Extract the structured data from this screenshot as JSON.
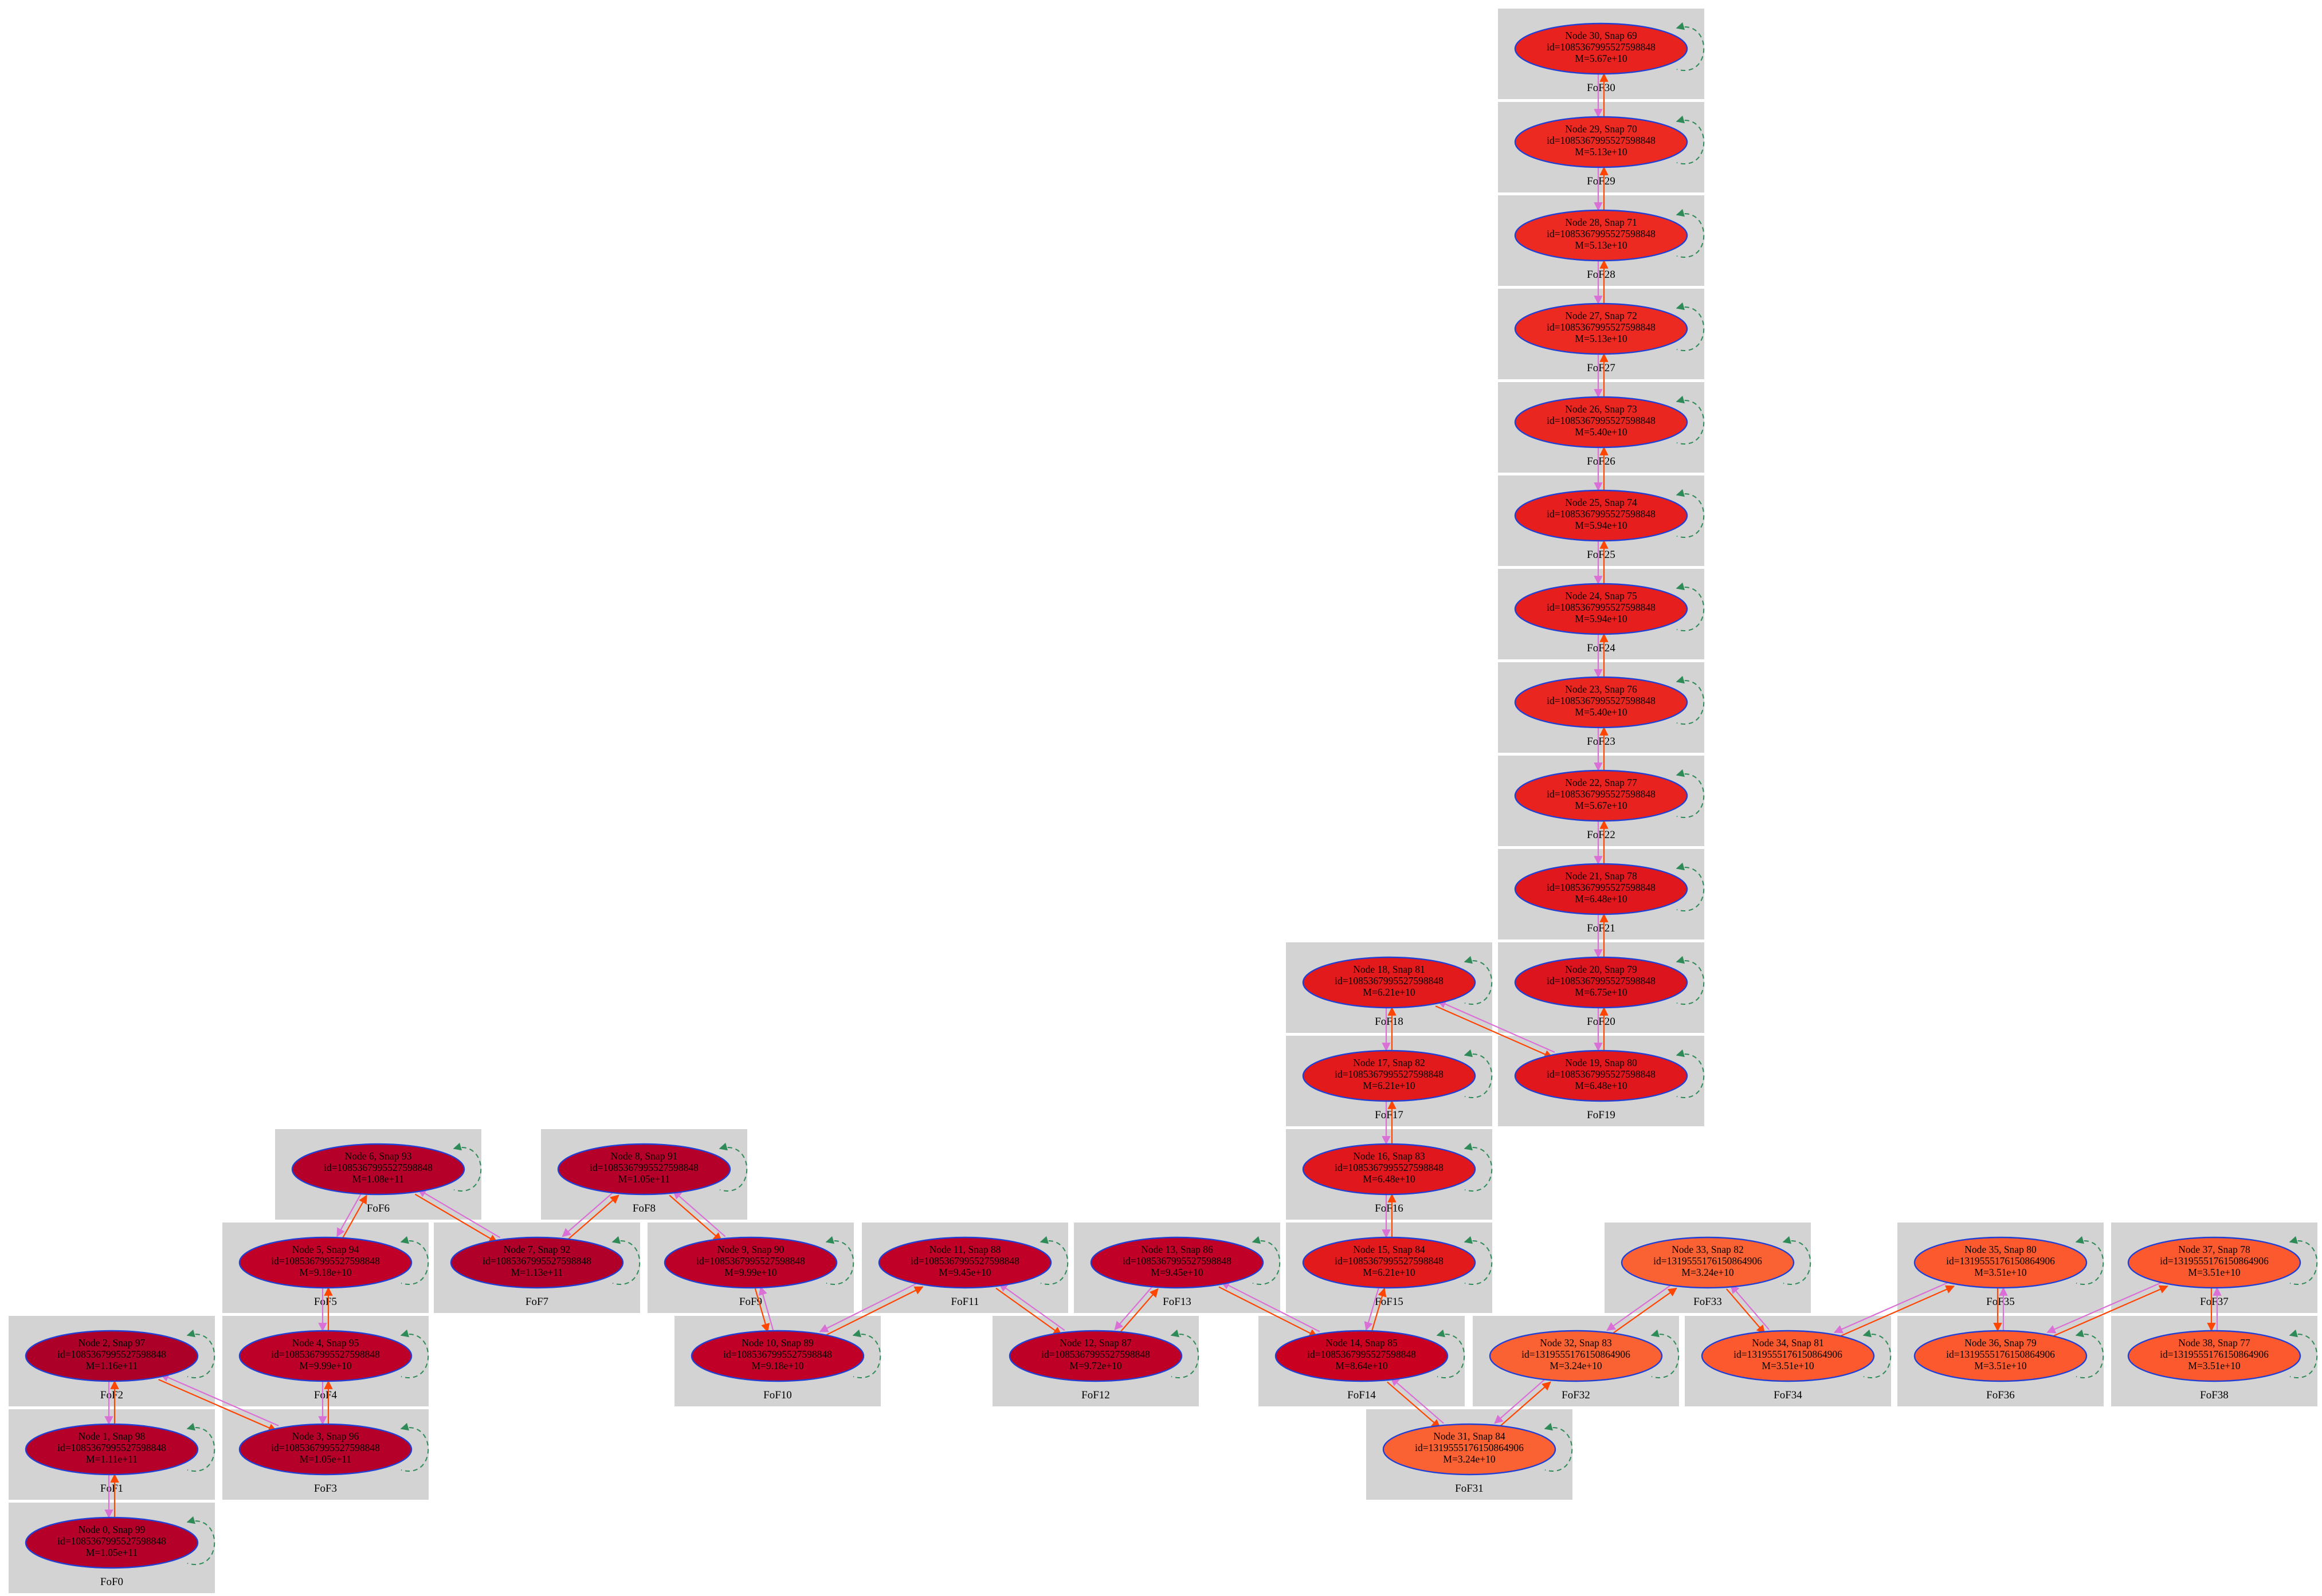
{
  "colors": {
    "cluster_bg": "#d3d3d3",
    "node_stroke": "#1f3fd6",
    "edge_progenitor": "#ff4500",
    "edge_descendant": "#da70d6",
    "edge_self_loop": "#2e8b57"
  },
  "clusters": [
    {
      "label": "FoF0"
    },
    {
      "label": "FoF1"
    },
    {
      "label": "FoF2"
    },
    {
      "label": "FoF3"
    },
    {
      "label": "FoF4"
    },
    {
      "label": "FoF5"
    },
    {
      "label": "FoF6"
    },
    {
      "label": "FoF7"
    },
    {
      "label": "FoF8"
    },
    {
      "label": "FoF9"
    },
    {
      "label": "FoF10"
    },
    {
      "label": "FoF11"
    },
    {
      "label": "FoF12"
    },
    {
      "label": "FoF13"
    },
    {
      "label": "FoF14"
    },
    {
      "label": "FoF15"
    },
    {
      "label": "FoF16"
    },
    {
      "label": "FoF17"
    },
    {
      "label": "FoF18"
    },
    {
      "label": "FoF19"
    },
    {
      "label": "FoF20"
    },
    {
      "label": "FoF21"
    },
    {
      "label": "FoF22"
    },
    {
      "label": "FoF23"
    },
    {
      "label": "FoF24"
    },
    {
      "label": "FoF25"
    },
    {
      "label": "FoF26"
    },
    {
      "label": "FoF27"
    },
    {
      "label": "FoF28"
    },
    {
      "label": "FoF29"
    },
    {
      "label": "FoF30"
    },
    {
      "label": "FoF31"
    },
    {
      "label": "FoF32"
    },
    {
      "label": "FoF33"
    },
    {
      "label": "FoF34"
    },
    {
      "label": "FoF35"
    },
    {
      "label": "FoF36"
    },
    {
      "label": "FoF37"
    },
    {
      "label": "FoF38"
    }
  ],
  "nodes": [
    {
      "title": "Node 0, Snap 99",
      "id_text": "id=1085367995527598848",
      "mass": "M=1.05e+11",
      "color": "#b5002a"
    },
    {
      "title": "Node 1, Snap 98",
      "id_text": "id=1085367995527598848",
      "mass": "M=1.11e+11",
      "color": "#b5002a"
    },
    {
      "title": "Node 2, Snap 97",
      "id_text": "id=1085367995527598848",
      "mass": "M=1.16e+11",
      "color": "#ad0028"
    },
    {
      "title": "Node 3, Snap 96",
      "id_text": "id=1085367995527598848",
      "mass": "M=1.05e+11",
      "color": "#b5002a"
    },
    {
      "title": "Node 4, Snap 95",
      "id_text": "id=1085367995527598848",
      "mass": "M=9.99e+10",
      "color": "#bd0028"
    },
    {
      "title": "Node 5, Snap 94",
      "id_text": "id=1085367995527598848",
      "mass": "M=9.18e+10",
      "color": "#c10027"
    },
    {
      "title": "Node 6, Snap 93",
      "id_text": "id=1085367995527598848",
      "mass": "M=1.08e+11",
      "color": "#b5002a"
    },
    {
      "title": "Node 7, Snap 92",
      "id_text": "id=1085367995527598848",
      "mass": "M=1.13e+11",
      "color": "#b00029"
    },
    {
      "title": "Node 8, Snap 91",
      "id_text": "id=1085367995527598848",
      "mass": "M=1.05e+11",
      "color": "#b5002a"
    },
    {
      "title": "Node 9, Snap 90",
      "id_text": "id=1085367995527598848",
      "mass": "M=9.99e+10",
      "color": "#bd0028"
    },
    {
      "title": "Node 10, Snap 89",
      "id_text": "id=1085367995527598848",
      "mass": "M=9.18e+10",
      "color": "#c10027"
    },
    {
      "title": "Node 11, Snap 88",
      "id_text": "id=1085367995527598848",
      "mass": "M=9.45e+10",
      "color": "#c00027"
    },
    {
      "title": "Node 12, Snap 87",
      "id_text": "id=1085367995527598848",
      "mass": "M=9.72e+10",
      "color": "#be0027"
    },
    {
      "title": "Node 13, Snap 86",
      "id_text": "id=1085367995527598848",
      "mass": "M=9.45e+10",
      "color": "#c00027"
    },
    {
      "title": "Node 14, Snap 85",
      "id_text": "id=1085367995527598848",
      "mass": "M=8.64e+10",
      "color": "#c9001f"
    },
    {
      "title": "Node 15, Snap 84",
      "id_text": "id=1085367995527598848",
      "mass": "M=6.21e+10",
      "color": "#e31a1c"
    },
    {
      "title": "Node 16, Snap 83",
      "id_text": "id=1085367995527598848",
      "mass": "M=6.48e+10",
      "color": "#e0171c"
    },
    {
      "title": "Node 17, Snap 82",
      "id_text": "id=1085367995527598848",
      "mass": "M=6.21e+10",
      "color": "#e31a1c"
    },
    {
      "title": "Node 18, Snap 81",
      "id_text": "id=1085367995527598848",
      "mass": "M=6.21e+10",
      "color": "#e31a1c"
    },
    {
      "title": "Node 19, Snap 80",
      "id_text": "id=1085367995527598848",
      "mass": "M=6.48e+10",
      "color": "#e0171c"
    },
    {
      "title": "Node 20, Snap 79",
      "id_text": "id=1085367995527598848",
      "mass": "M=6.75e+10",
      "color": "#dc141d"
    },
    {
      "title": "Node 21, Snap 78",
      "id_text": "id=1085367995527598848",
      "mass": "M=6.48e+10",
      "color": "#e0171c"
    },
    {
      "title": "Node 22, Snap 77",
      "id_text": "id=1085367995527598848",
      "mass": "M=5.67e+10",
      "color": "#e8231f"
    },
    {
      "title": "Node 23, Snap 76",
      "id_text": "id=1085367995527598848",
      "mass": "M=5.40e+10",
      "color": "#ea2620"
    },
    {
      "title": "Node 24, Snap 75",
      "id_text": "id=1085367995527598848",
      "mass": "M=5.94e+10",
      "color": "#e61f1e"
    },
    {
      "title": "Node 25, Snap 74",
      "id_text": "id=1085367995527598848",
      "mass": "M=5.94e+10",
      "color": "#e61f1e"
    },
    {
      "title": "Node 26, Snap 73",
      "id_text": "id=1085367995527598848",
      "mass": "M=5.40e+10",
      "color": "#ea2620"
    },
    {
      "title": "Node 27, Snap 72",
      "id_text": "id=1085367995527598848",
      "mass": "M=5.13e+10",
      "color": "#ec2a21"
    },
    {
      "title": "Node 28, Snap 71",
      "id_text": "id=1085367995527598848",
      "mass": "M=5.13e+10",
      "color": "#ec2a21"
    },
    {
      "title": "Node 29, Snap 70",
      "id_text": "id=1085367995527598848",
      "mass": "M=5.13e+10",
      "color": "#ec2a21"
    },
    {
      "title": "Node 30, Snap 69",
      "id_text": "id=1085367995527598848",
      "mass": "M=5.67e+10",
      "color": "#e8231f"
    },
    {
      "title": "Node 31, Snap 84",
      "id_text": "id=1319555176150864906",
      "mass": "M=3.24e+10",
      "color": "#fb6233"
    },
    {
      "title": "Node 32, Snap 83",
      "id_text": "id=1319555176150864906",
      "mass": "M=3.24e+10",
      "color": "#fb6233"
    },
    {
      "title": "Node 33, Snap 82",
      "id_text": "id=1319555176150864906",
      "mass": "M=3.24e+10",
      "color": "#fb6233"
    },
    {
      "title": "Node 34, Snap 81",
      "id_text": "id=1319555176150864906",
      "mass": "M=3.51e+10",
      "color": "#fc5a2e"
    },
    {
      "title": "Node 35, Snap 80",
      "id_text": "id=1319555176150864906",
      "mass": "M=3.51e+10",
      "color": "#fc5a2e"
    },
    {
      "title": "Node 36, Snap 79",
      "id_text": "id=1319555176150864906",
      "mass": "M=3.51e+10",
      "color": "#fc5a2e"
    },
    {
      "title": "Node 37, Snap 78",
      "id_text": "id=1319555176150864906",
      "mass": "M=3.51e+10",
      "color": "#fc5a2e"
    },
    {
      "title": "Node 38, Snap 77",
      "id_text": "id=1319555176150864906",
      "mass": "M=3.51e+10",
      "color": "#fc5a2e"
    }
  ],
  "edges": [
    [
      0,
      1
    ],
    [
      1,
      2
    ],
    [
      2,
      3
    ],
    [
      3,
      4
    ],
    [
      4,
      5
    ],
    [
      5,
      6
    ],
    [
      6,
      7
    ],
    [
      7,
      8
    ],
    [
      8,
      9
    ],
    [
      9,
      10
    ],
    [
      10,
      11
    ],
    [
      11,
      12
    ],
    [
      12,
      13
    ],
    [
      13,
      14
    ],
    [
      14,
      15
    ],
    [
      15,
      16
    ],
    [
      16,
      17
    ],
    [
      17,
      18
    ],
    [
      18,
      19
    ],
    [
      19,
      20
    ],
    [
      20,
      21
    ],
    [
      21,
      22
    ],
    [
      22,
      23
    ],
    [
      23,
      24
    ],
    [
      24,
      25
    ],
    [
      25,
      26
    ],
    [
      26,
      27
    ],
    [
      27,
      28
    ],
    [
      28,
      29
    ],
    [
      29,
      30
    ],
    [
      14,
      31
    ],
    [
      31,
      32
    ],
    [
      32,
      33
    ],
    [
      33,
      34
    ],
    [
      34,
      35
    ],
    [
      35,
      36
    ],
    [
      36,
      37
    ],
    [
      37,
      38
    ]
  ]
}
